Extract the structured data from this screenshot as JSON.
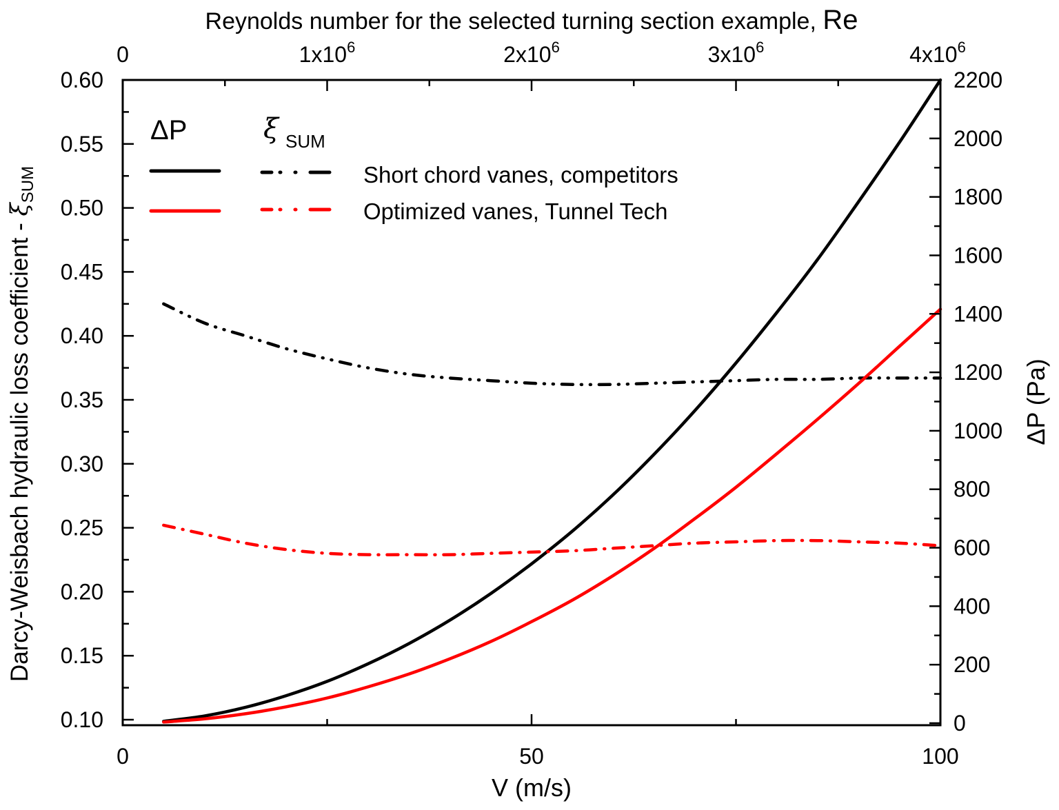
{
  "chart_data": {
    "type": "line",
    "x_bottom": {
      "label": "V (m/s)",
      "range": [
        0,
        100
      ],
      "ticks": [
        "0",
        "50",
        "100"
      ]
    },
    "x_top": {
      "label": "Reynolds number for the selected turning section example, ",
      "label_suffix": "Re",
      "range": [
        0,
        4000000
      ],
      "ticks": [
        {
          "v": 0,
          "base": "0",
          "exp": ""
        },
        {
          "v": 1000000,
          "base": "1x10",
          "exp": "6"
        },
        {
          "v": 2000000,
          "base": "2x10",
          "exp": "6"
        },
        {
          "v": 3000000,
          "base": "3x10",
          "exp": "6"
        },
        {
          "v": 4000000,
          "base": "4x10",
          "exp": "6"
        }
      ]
    },
    "y_left": {
      "label": "Darcy-Weisbach hydraulic loss coefficient - ",
      "label_symbol": "ξ",
      "label_sub": "SUM",
      "range": [
        0.1,
        0.6
      ],
      "ticks": [
        "0.10",
        "0.15",
        "0.20",
        "0.25",
        "0.30",
        "0.35",
        "0.40",
        "0.45",
        "0.50",
        "0.55",
        "0.60"
      ]
    },
    "y_right": {
      "label": "ΔP (Pa)",
      "range": [
        0,
        2200
      ],
      "ticks": [
        "0",
        "200",
        "400",
        "600",
        "800",
        "1000",
        "1200",
        "1400",
        "1600",
        "1800",
        "2000",
        "2200"
      ]
    },
    "grid": false,
    "legend": {
      "position": "top-left",
      "col1_header": "ΔP",
      "col2_header_symbol": "ξ",
      "col2_header_sub": "SUM"
    },
    "x": [
      5,
      10,
      15,
      20,
      25,
      30,
      35,
      40,
      45,
      50,
      55,
      60,
      65,
      70,
      75,
      80,
      85,
      90,
      95,
      100
    ],
    "series": [
      {
        "name": "Short chord vanes, competitors",
        "quantity": "ΔP",
        "axis": "right",
        "color": "#000000",
        "style": "solid",
        "values": [
          6.4,
          24.6,
          54,
          94,
          143,
          203,
          272,
          352,
          443,
          545,
          657,
          782,
          920,
          1070,
          1232,
          1405,
          1587,
          1784,
          1987,
          2200
        ]
      },
      {
        "name": "Short chord vanes, competitors",
        "quantity": "ξ SUM",
        "axis": "left",
        "color": "#000000",
        "style": "dash-dot-dot",
        "values": [
          0.425,
          0.41,
          0.4,
          0.39,
          0.382,
          0.375,
          0.37,
          0.367,
          0.365,
          0.363,
          0.362,
          0.362,
          0.363,
          0.364,
          0.365,
          0.366,
          0.366,
          0.367,
          0.367,
          0.367
        ]
      },
      {
        "name": "Optimized vanes, Tunnel Tech",
        "quantity": "ΔP",
        "axis": "right",
        "color": "#ff0000",
        "style": "solid",
        "values": [
          3.8,
          14.7,
          32,
          56,
          86,
          124,
          168,
          220,
          279,
          347,
          421,
          505,
          598,
          700,
          807,
          922,
          1040,
          1162,
          1289,
          1416
        ]
      },
      {
        "name": "Optimized vanes, Tunnel Tech",
        "quantity": "ξ SUM",
        "axis": "left",
        "color": "#ff0000",
        "style": "dash-dot",
        "values": [
          0.252,
          0.245,
          0.238,
          0.233,
          0.23,
          0.229,
          0.229,
          0.229,
          0.23,
          0.231,
          0.232,
          0.234,
          0.236,
          0.238,
          0.239,
          0.24,
          0.24,
          0.239,
          0.238,
          0.236
        ]
      }
    ]
  }
}
